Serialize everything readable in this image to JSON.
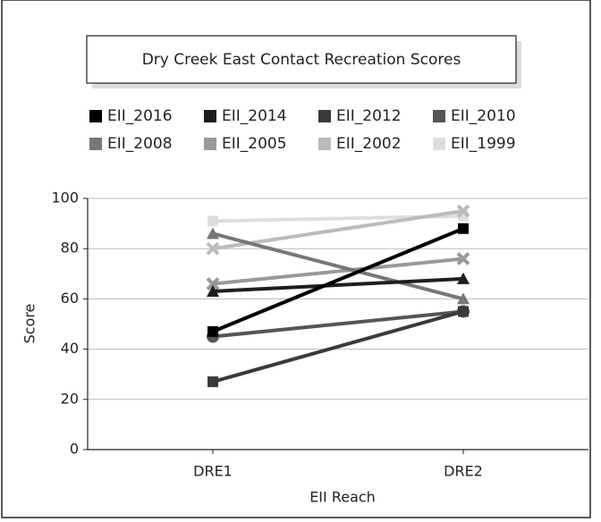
{
  "chart_data": {
    "type": "line",
    "title": "Dry Creek East Contact Recreation Scores",
    "x_label": "EII Reach",
    "y_label": "Score",
    "categories": [
      "DRE1",
      "DRE2"
    ],
    "series": [
      {
        "name": "EII_2016",
        "color": "#000000",
        "marker": "square",
        "values": [
          47,
          88
        ]
      },
      {
        "name": "EII_2014",
        "color": "#1e1e1e",
        "marker": "triangle",
        "values": [
          63,
          68
        ]
      },
      {
        "name": "EII_2012",
        "color": "#3a3a3a",
        "marker": "square",
        "values": [
          27,
          55
        ]
      },
      {
        "name": "EII_2010",
        "color": "#555555",
        "marker": "circle",
        "values": [
          45,
          55
        ]
      },
      {
        "name": "EII_2008",
        "color": "#777777",
        "marker": "triangle",
        "values": [
          86,
          60
        ]
      },
      {
        "name": "EII_2005",
        "color": "#999999",
        "marker": "x",
        "values": [
          66,
          76
        ]
      },
      {
        "name": "EII_2002",
        "color": "#bbbbbb",
        "marker": "x",
        "values": [
          80,
          95
        ]
      },
      {
        "name": "EII_1999",
        "color": "#dddddd",
        "marker": "square",
        "values": [
          91,
          93
        ]
      }
    ],
    "ylim": [
      0,
      100
    ],
    "yticks": [
      0,
      20,
      40,
      60,
      80,
      100
    ],
    "grid": true
  }
}
